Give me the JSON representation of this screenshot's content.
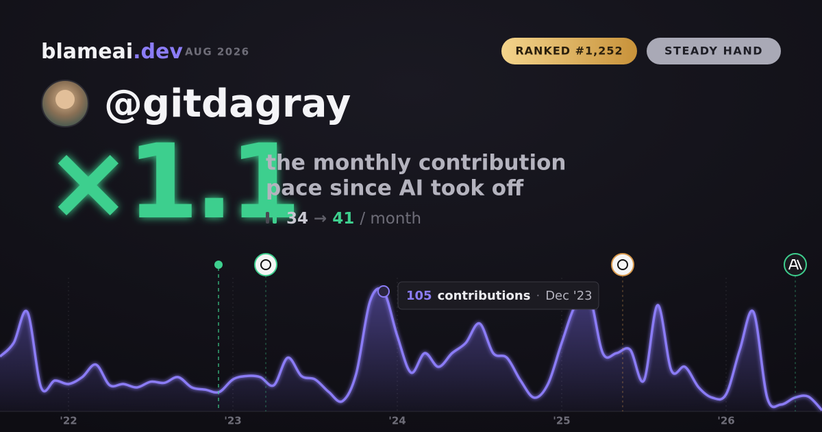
{
  "header": {
    "brand": "blameai",
    "brand_tld": ".dev",
    "period": "AUG 2026",
    "badges": [
      "RANKED #1,252",
      "STEADY HAND"
    ]
  },
  "profile": {
    "handle": "@gitdagray"
  },
  "headline": {
    "multiplier": "×1.1",
    "description": [
      "the monthly contribution",
      "pace since AI took off"
    ],
    "before": "34",
    "arrow": "→",
    "after": "41",
    "unit": "/ month"
  },
  "chart_data": {
    "type": "area",
    "color": "#8b7cf6",
    "categories": [
      null,
      null,
      null,
      null,
      null,
      "'22",
      null,
      null,
      null,
      null,
      null,
      null,
      null,
      null,
      null,
      null,
      null,
      "'23",
      null,
      null,
      null,
      null,
      null,
      null,
      null,
      null,
      null,
      null,
      null,
      "'24",
      null,
      null,
      null,
      null,
      null,
      null,
      null,
      null,
      null,
      null,
      null,
      "'25",
      null,
      null,
      null,
      null,
      null,
      null,
      null,
      null,
      null,
      null,
      null,
      "'26",
      null,
      null,
      null,
      null,
      null,
      null,
      null
    ],
    "values": [
      48,
      60,
      87,
      21,
      27,
      24,
      30,
      41,
      23,
      24,
      21,
      26,
      25,
      30,
      21,
      19,
      17,
      28,
      31,
      30,
      23,
      47,
      31,
      28,
      17,
      9,
      33,
      96,
      105,
      66,
      34,
      51,
      39,
      51,
      60,
      77,
      51,
      47,
      27,
      12,
      24,
      60,
      93,
      102,
      51,
      51,
      54,
      27,
      93,
      36,
      39,
      21,
      12,
      15,
      54,
      87,
      12,
      6,
      12,
      13,
      1
    ],
    "ylim": [
      0,
      120
    ],
    "tooltip": {
      "index": 28,
      "label": "contributions",
      "separator": "·",
      "date": "Dec '23"
    }
  }
}
